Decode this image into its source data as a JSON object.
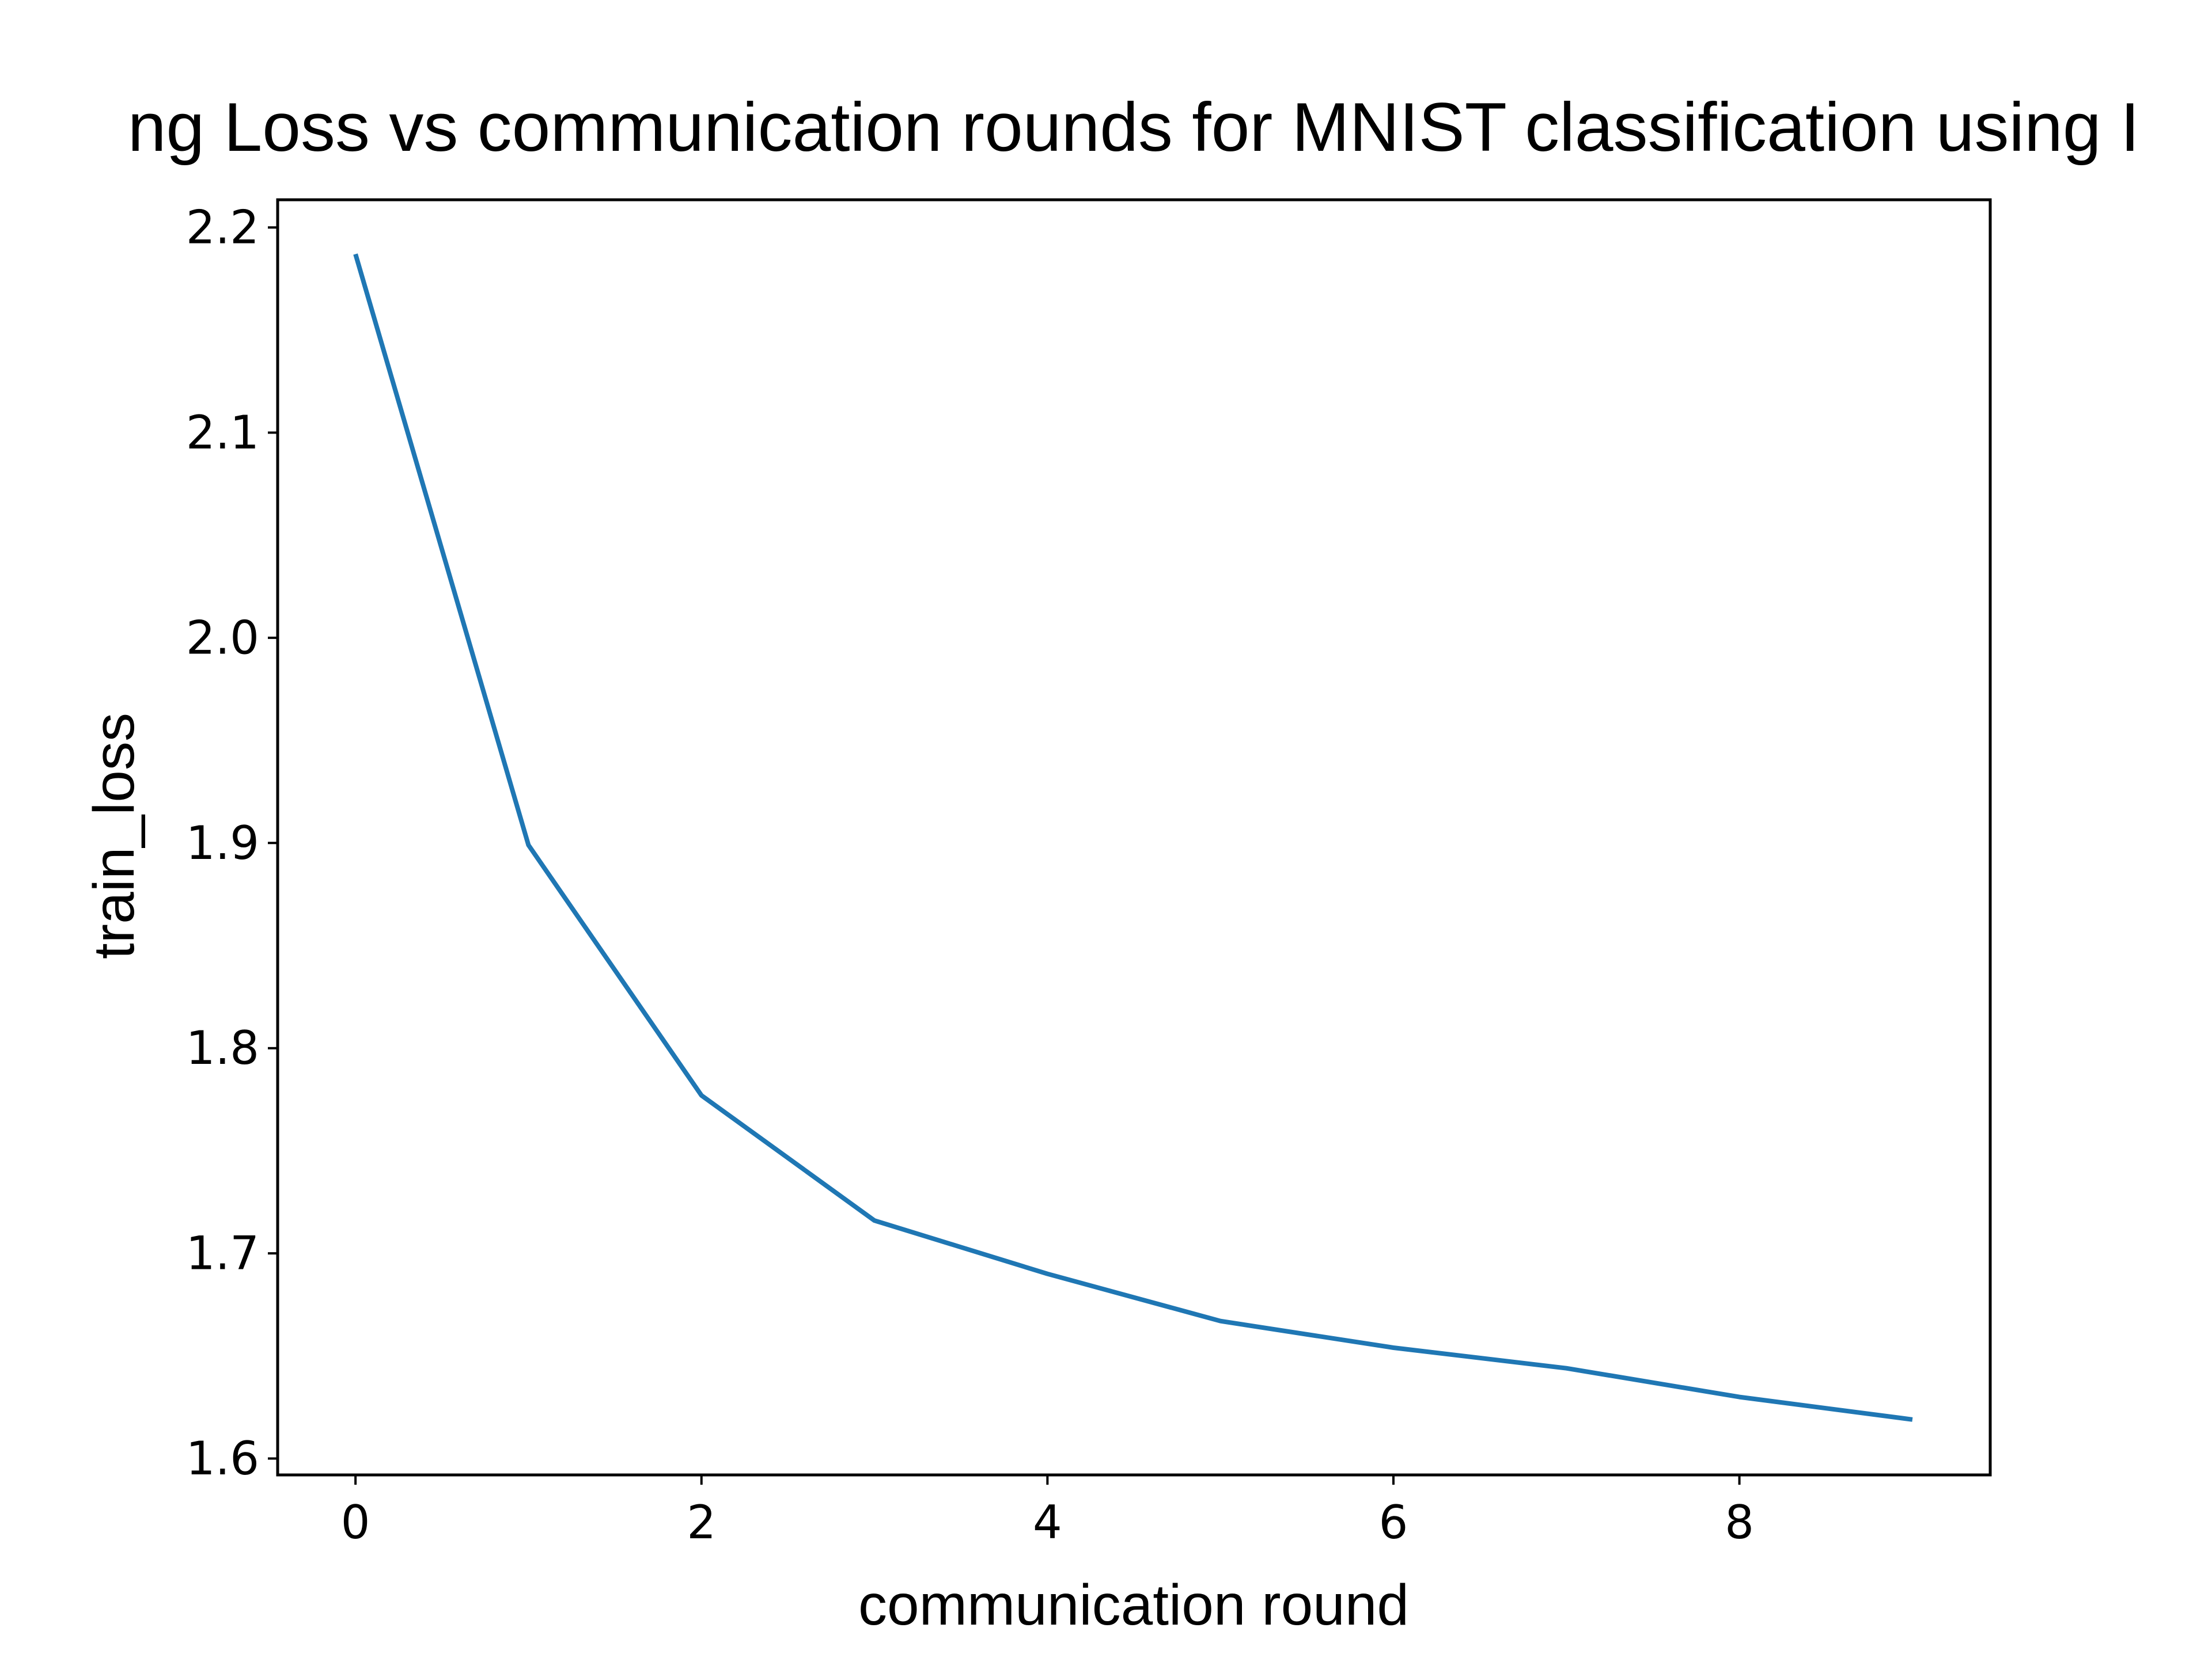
{
  "chart_data": {
    "type": "line",
    "title": "ng Loss vs communication rounds for MNIST classification using I",
    "xlabel": "communication round",
    "ylabel": "train_loss",
    "x": [
      0,
      1,
      2,
      3,
      4,
      5,
      6,
      7,
      8,
      9
    ],
    "series": [
      {
        "values": [
          2.187,
          1.899,
          1.777,
          1.716,
          1.69,
          1.667,
          1.654,
          1.644,
          1.63,
          1.619
        ],
        "color": "#1f77b4"
      }
    ],
    "xlim": [
      -0.45,
      9.45
    ],
    "ylim": [
      1.592,
      2.2135
    ],
    "xticks": [
      0,
      2,
      4,
      6,
      8
    ],
    "xtick_labels": [
      "0",
      "2",
      "4",
      "6",
      "8"
    ],
    "yticks": [
      1.6,
      1.7,
      1.8,
      1.9,
      2.0,
      2.1,
      2.2
    ],
    "ytick_labels": [
      "1.6",
      "1.7",
      "1.8",
      "1.9",
      "2.0",
      "2.1",
      "2.2"
    ],
    "grid": false,
    "legend": "none"
  }
}
